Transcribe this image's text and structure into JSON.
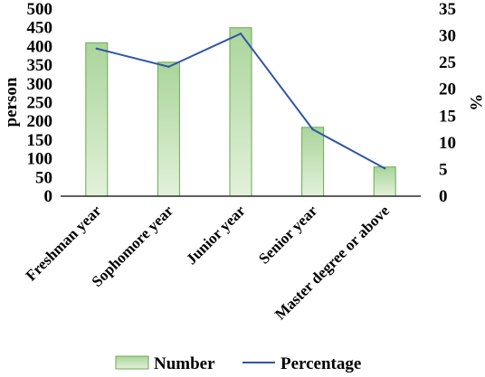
{
  "chart_data": {
    "type": "bar",
    "categories": [
      "Freshman year",
      "Sophomore year",
      "Junior year",
      "Senior year",
      "Master degree or above"
    ],
    "series": [
      {
        "name": "Number",
        "type": "bar",
        "axis": "left",
        "values": [
          410,
          358,
          450,
          184,
          78
        ]
      },
      {
        "name": "Percentage",
        "type": "line",
        "axis": "right",
        "values": [
          27.6,
          24.2,
          30.4,
          12.5,
          5.2
        ]
      }
    ],
    "ylabel_left": "person",
    "ylabel_right": "%",
    "ylim_left": [
      0,
      500
    ],
    "ylim_right": [
      0,
      35
    ],
    "yticks_left": [
      "0",
      "50",
      "100",
      "150",
      "200",
      "250",
      "300",
      "350",
      "400",
      "450",
      "500"
    ],
    "yticks_right": [
      "0",
      "5",
      "10",
      "15",
      "20",
      "25",
      "30",
      "35"
    ],
    "grid": false,
    "legend_position": "bottom",
    "colors": {
      "bar_fill_top": "#aad59a",
      "bar_fill_bottom": "#e2f1da",
      "bar_edge": "#6aaa50",
      "line": "#2e55a8"
    }
  }
}
